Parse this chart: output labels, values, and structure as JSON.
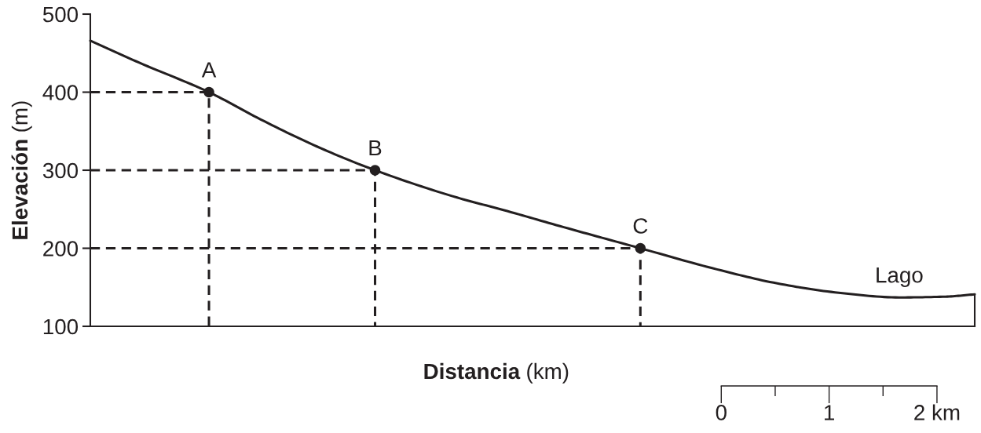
{
  "chart_data": {
    "type": "line",
    "xlabel": "Distancia (km)",
    "ylabel": "Elevación (m)",
    "xlim": [
      -5.85,
      2.35
    ],
    "xticks": [
      0,
      {
        "value": 0.5,
        "label": null
      },
      1,
      {
        "value": 1.5,
        "label": null
      },
      {
        "value": 2,
        "label": "2 km"
      }
    ],
    "ylim": [
      100,
      500
    ],
    "yticks": [
      100,
      200,
      300,
      400,
      500
    ],
    "series": [
      {
        "color": "#231f20",
        "x": [
          -5.85,
          -5.4,
          -4.75,
          -4.27,
          -3.71,
          -3.21,
          -2.45,
          -2.02,
          -1.46,
          -0.75,
          -0.04,
          0.52,
          1.09,
          1.65,
          2.08,
          2.35
        ],
        "values": [
          466,
          438,
          400,
          365,
          328,
          300,
          265,
          249,
          227,
          200,
          173,
          155,
          143,
          137,
          138,
          141
        ]
      },
      {
        "color": "#231f20",
        "line_style": "dashed",
        "x": [
          -5.85,
          -4.75,
          -4.75
        ],
        "values": [
          400,
          400,
          100
        ]
      },
      {
        "color": "#231f20",
        "line_style": "dashed",
        "x": [
          -5.85,
          -3.21,
          -3.21
        ],
        "values": [
          300,
          300,
          100
        ]
      },
      {
        "color": "#231f20",
        "line_style": "dashed",
        "x": [
          -5.85,
          -0.75,
          -0.75
        ],
        "values": [
          200,
          200,
          100
        ]
      },
      {
        "type": "scatter",
        "marker": "circle",
        "color": "#231f20",
        "x": [
          -4.75,
          -3.21,
          -0.75
        ],
        "values": [
          400,
          300,
          200
        ]
      }
    ],
    "annotations": [
      {
        "text": "A",
        "x": -4.75,
        "y": 400
      },
      {
        "text": "B",
        "x": -3.21,
        "y": 300
      },
      {
        "text": "C",
        "x": -0.75,
        "y": 200
      },
      {
        "text": "Lago",
        "x": 1.65,
        "y": 137
      }
    ]
  }
}
